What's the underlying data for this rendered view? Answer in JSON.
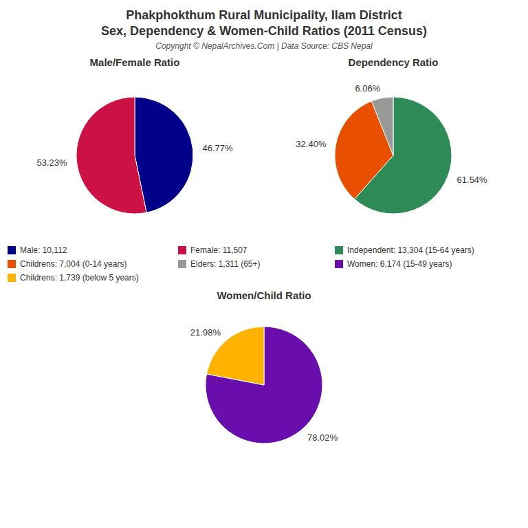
{
  "title": "Phakphokthum Rural Municipality, Ilam District",
  "subtitle": "Sex, Dependency & Women-Child Ratios (2011 Census)",
  "annotations": [
    "Copyright © NepalArchives.Com | Data Source: CBS Nepal"
  ],
  "legend": "center",
  "chart_data": [
    {
      "type": "pie",
      "title": "Male/Female Ratio",
      "categories": [
        "Male: 10,112",
        "Female: 11,507"
      ],
      "values": [
        46.77,
        53.23
      ],
      "value_labels": [
        "46.77%",
        "53.23%"
      ],
      "colors": [
        "#00008B",
        "#CC1144"
      ],
      "data_labels": true
    },
    {
      "type": "pie",
      "title": "Dependency Ratio",
      "categories": [
        "Independent: 13,304 (15-64 years)",
        "Childrens: 7,004 (0-14 years)",
        "Elders: 1,311 (65+)"
      ],
      "values": [
        61.54,
        32.4,
        6.06
      ],
      "value_labels": [
        "61.54%",
        "32.40%",
        "6.06%"
      ],
      "colors": [
        "#2E8B57",
        "#E85000",
        "#999999"
      ],
      "data_labels": true
    },
    {
      "type": "pie",
      "title": "Women/Child Ratio",
      "categories": [
        "Women: 6,174 (15-49 years)",
        "Childrens: 1,739 (below 5 years)"
      ],
      "values": [
        78.02,
        21.98
      ],
      "value_labels": [
        "78.02%",
        "21.98%"
      ],
      "colors": [
        "#6A0DAD",
        "#FFB300"
      ],
      "data_labels": true
    }
  ]
}
